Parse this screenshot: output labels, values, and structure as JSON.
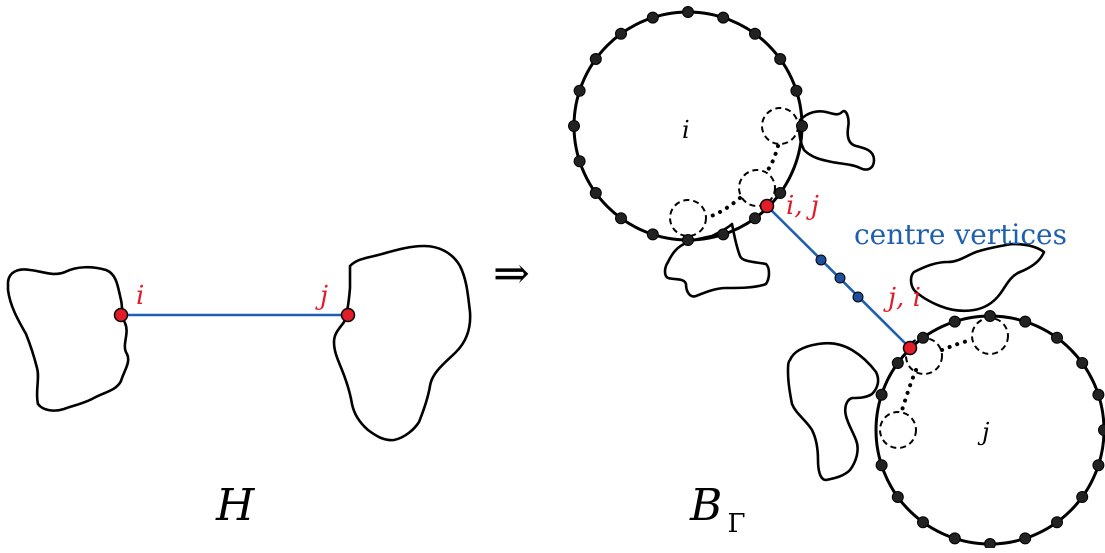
{
  "left": {
    "title": "H",
    "vertex_i": "i",
    "vertex_j": "j"
  },
  "arrow": "⇒",
  "right": {
    "title_main": "B",
    "title_sub": "Γ",
    "circle_i": "i",
    "circle_j": "j",
    "pair_ij": "i, j",
    "pair_ji": "j, i",
    "centre_label": "centre vertices"
  },
  "colors": {
    "edge": "#1f5fb0",
    "red_vertex": "#e11d2a",
    "blue_vertex": "#1f4f9c",
    "black_vertex": "#222222"
  }
}
